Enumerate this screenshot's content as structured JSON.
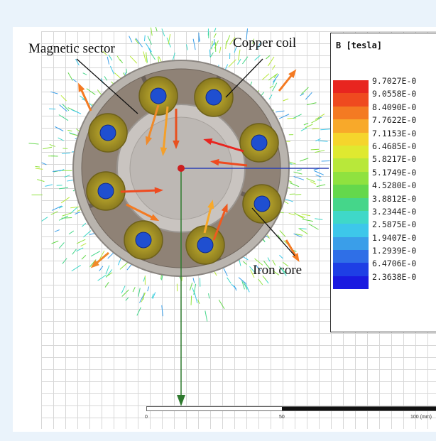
{
  "annotations": {
    "magnetic_sector": "Magnetic sector",
    "copper_coil": "Copper coil",
    "iron_core": "Iron core"
  },
  "legend": {
    "title": "B [tesla]",
    "values": [
      "9.7027E-0",
      "9.0558E-0",
      "8.4090E-0",
      "7.7622E-0",
      "7.1153E-0",
      "6.4685E-0",
      "5.8217E-0",
      "5.1749E-0",
      "4.5280E-0",
      "3.8812E-0",
      "3.2344E-0",
      "2.5875E-0",
      "1.9407E-0",
      "1.2939E-0",
      "6.4706E-0",
      "2.3638E-0"
    ],
    "colors": [
      "#e8251f",
      "#ef4a1f",
      "#f47a22",
      "#f8a92a",
      "#f5d52c",
      "#dfe930",
      "#b8e83a",
      "#8fe23f",
      "#64d84c",
      "#45d68a",
      "#3fd8c8",
      "#3dc7ea",
      "#3a9ee9",
      "#2f6fe7",
      "#1e3fe5",
      "#1a1ae0"
    ]
  },
  "scale": {
    "ticks": [
      "0",
      "50",
      "100 (mm)"
    ]
  },
  "colors": {
    "coil_ring": "#9c8a26",
    "iron_core": "#1f4fd0",
    "x_axis": "#2c3fb4",
    "y_axis": "#2f7a2f",
    "origin": "#cc1f1f"
  }
}
